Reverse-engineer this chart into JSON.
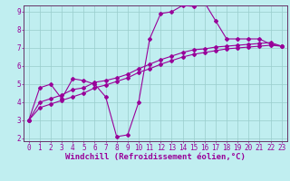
{
  "xlabel": "Windchill (Refroidissement éolien,°C)",
  "bg_color": "#c0eef0",
  "line_color": "#990099",
  "grid_color": "#99cccc",
  "axis_color": "#663366",
  "xlim": [
    -0.5,
    23.5
  ],
  "ylim": [
    1.85,
    9.35
  ],
  "xticks": [
    0,
    1,
    2,
    3,
    4,
    5,
    6,
    7,
    8,
    9,
    10,
    11,
    12,
    13,
    14,
    15,
    16,
    17,
    18,
    19,
    20,
    21,
    22,
    23
  ],
  "yticks": [
    2,
    3,
    4,
    5,
    6,
    7,
    8,
    9
  ],
  "line1_x": [
    0,
    1,
    2,
    3,
    4,
    5,
    6,
    7,
    8,
    9,
    10,
    11,
    12,
    13,
    14,
    15,
    16,
    17,
    18,
    19,
    20,
    21,
    22,
    23
  ],
  "line1_y": [
    3.0,
    4.8,
    5.0,
    4.2,
    5.3,
    5.2,
    5.0,
    4.3,
    2.1,
    2.2,
    4.0,
    7.5,
    8.9,
    9.0,
    9.35,
    9.3,
    9.5,
    8.5,
    7.5,
    7.5,
    7.5,
    7.5,
    7.2,
    7.1
  ],
  "line2_x": [
    0,
    1,
    2,
    3,
    4,
    5,
    6,
    7,
    8,
    9,
    10,
    11,
    12,
    13,
    14,
    15,
    16,
    17,
    18,
    19,
    20,
    21,
    22,
    23
  ],
  "line2_y": [
    3.0,
    4.0,
    4.2,
    4.4,
    4.7,
    4.8,
    5.1,
    5.2,
    5.35,
    5.55,
    5.85,
    6.1,
    6.35,
    6.55,
    6.75,
    6.9,
    6.95,
    7.05,
    7.1,
    7.15,
    7.2,
    7.25,
    7.3,
    7.1
  ],
  "line3_x": [
    0,
    1,
    2,
    3,
    4,
    5,
    6,
    7,
    8,
    9,
    10,
    11,
    12,
    13,
    14,
    15,
    16,
    17,
    18,
    19,
    20,
    21,
    22,
    23
  ],
  "line3_y": [
    3.0,
    3.7,
    3.9,
    4.1,
    4.3,
    4.5,
    4.8,
    4.95,
    5.15,
    5.35,
    5.65,
    5.85,
    6.1,
    6.3,
    6.5,
    6.65,
    6.75,
    6.85,
    6.95,
    7.0,
    7.05,
    7.1,
    7.15,
    7.1
  ],
  "marker": "D",
  "markersize": 2.0,
  "linewidth": 0.8,
  "xlabel_fontsize": 6.5,
  "tick_fontsize": 5.5
}
